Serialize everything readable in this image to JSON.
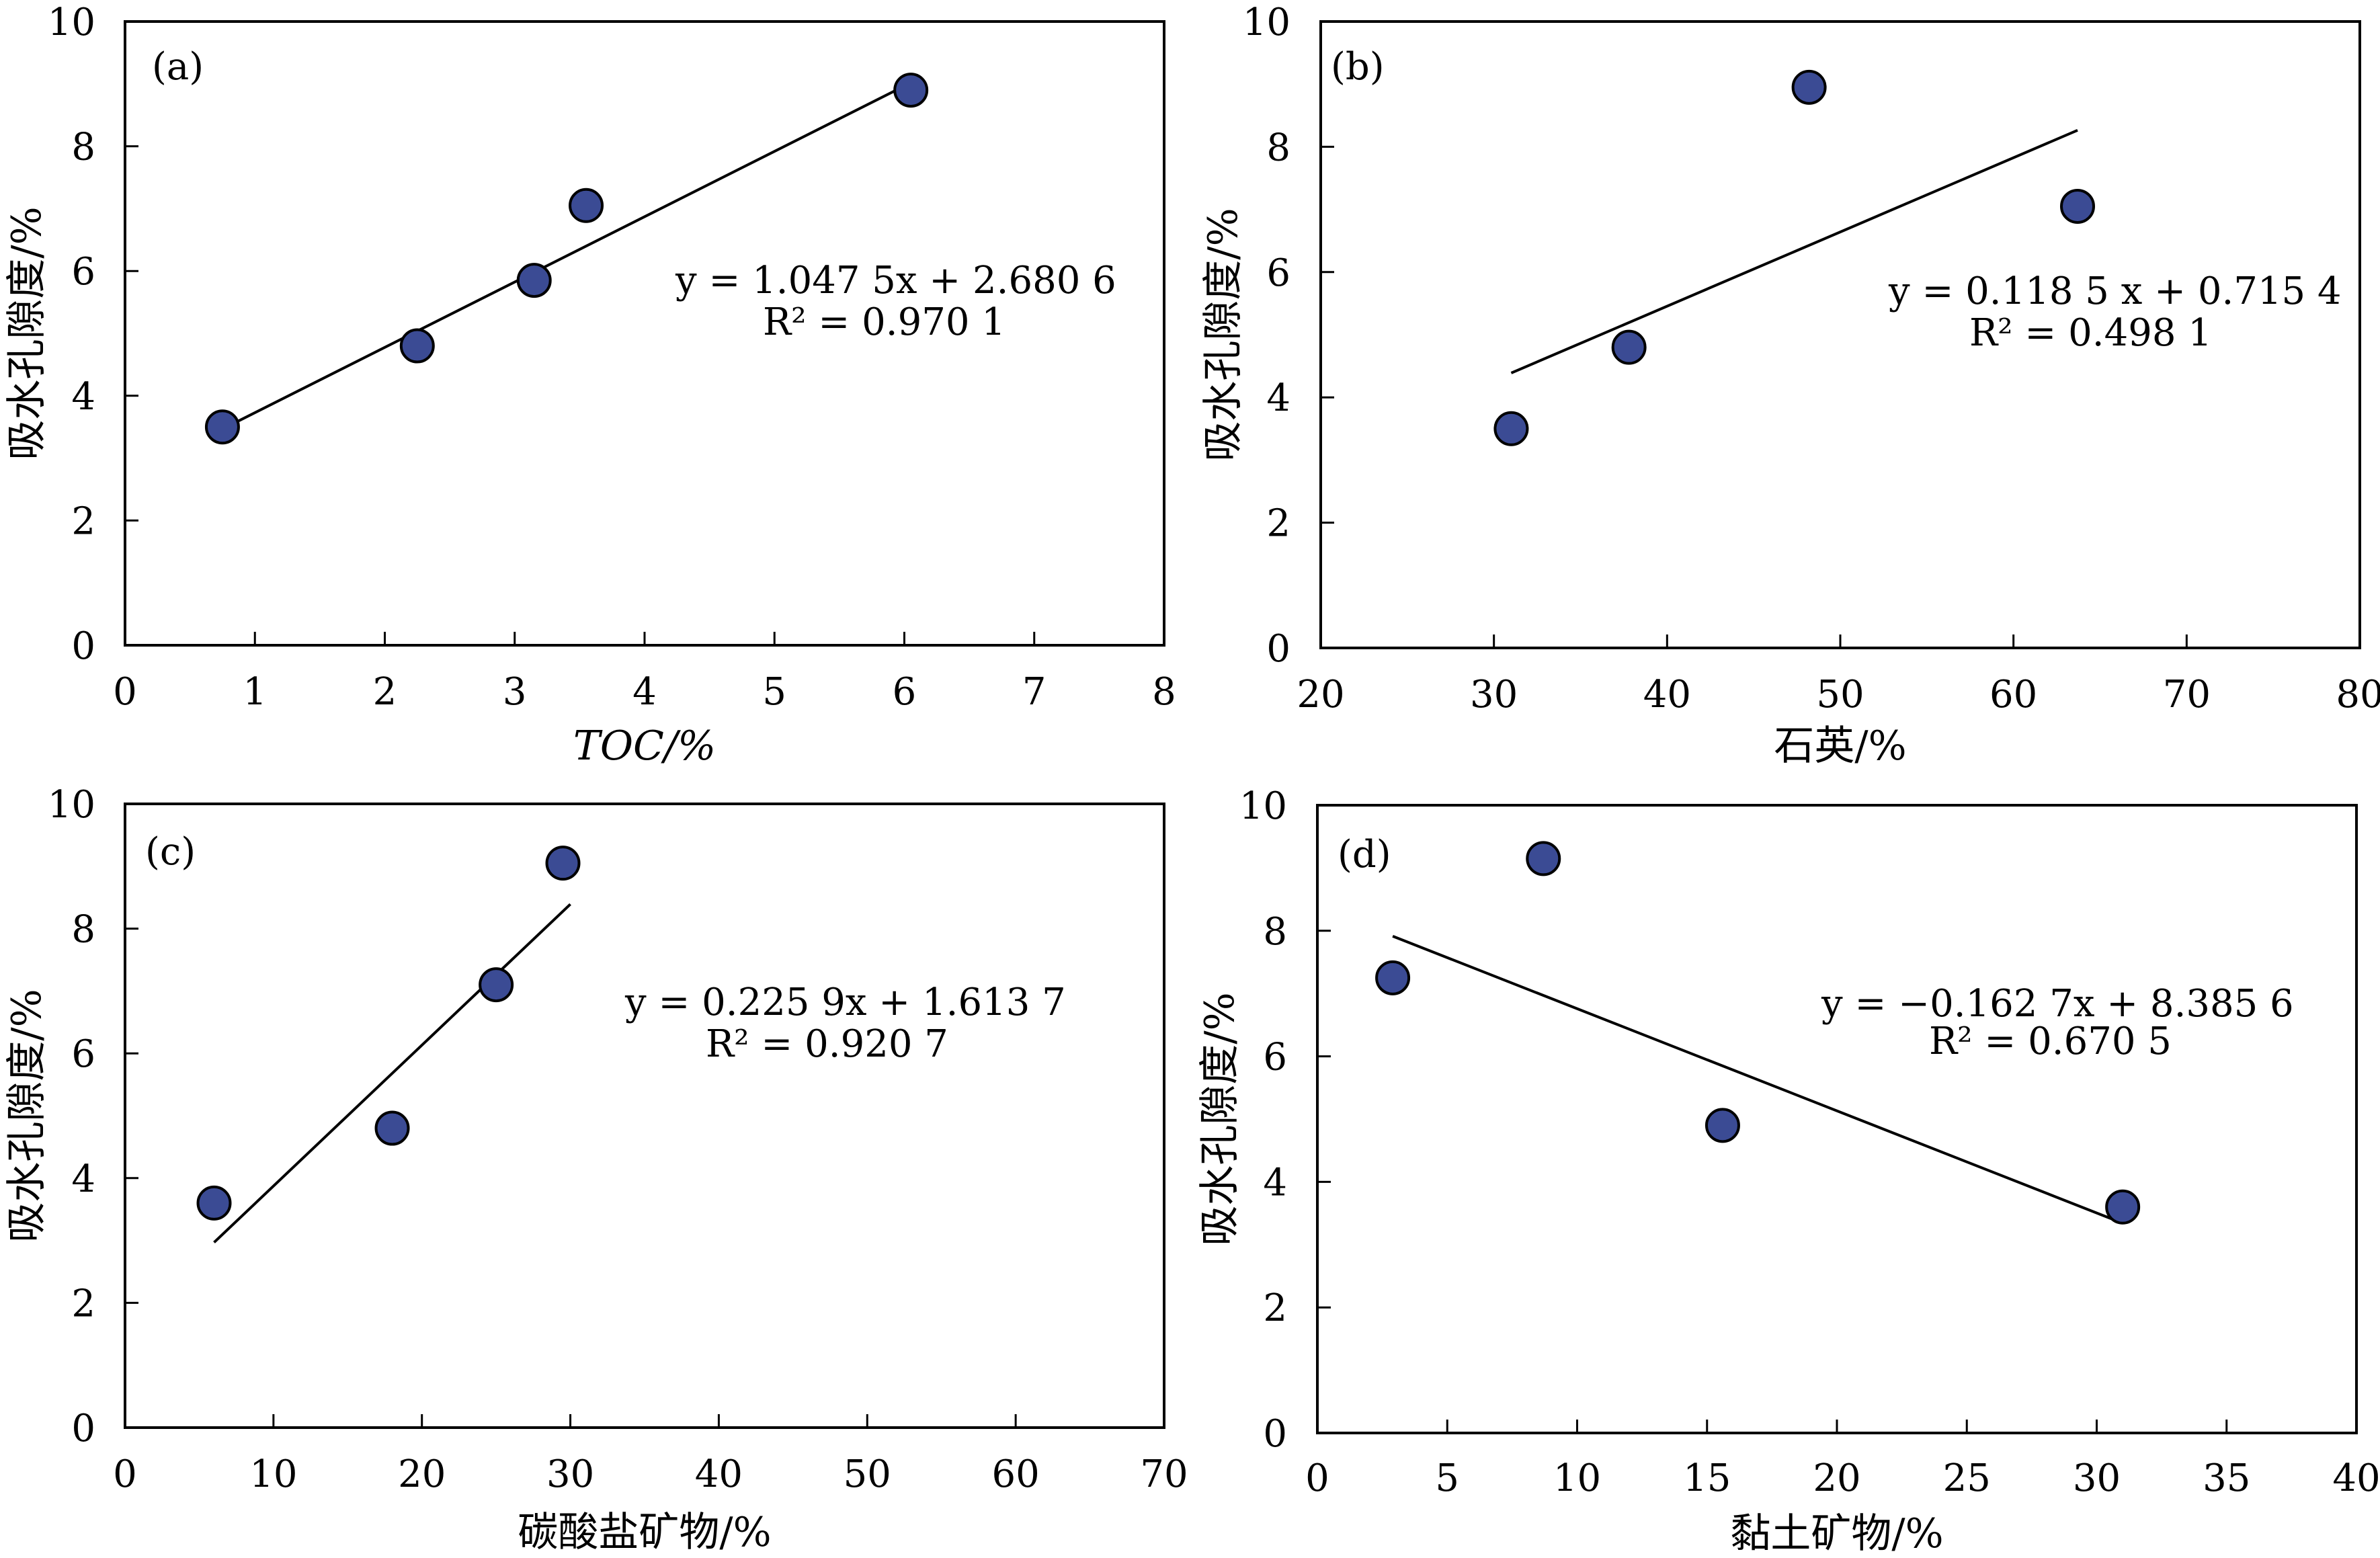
{
  "chart_data": [
    {
      "type": "scatter",
      "panel_label": "(a)",
      "xlabel": "TOC/%",
      "ylabel": "吸水孔隙度/%",
      "xlim": [
        0,
        8
      ],
      "ylim": [
        0,
        10
      ],
      "xticks": [
        0,
        1,
        2,
        3,
        4,
        5,
        6,
        7,
        8
      ],
      "yticks": [
        0,
        2,
        4,
        6,
        8,
        10
      ],
      "points": [
        {
          "x": 0.75,
          "y": 3.5
        },
        {
          "x": 2.25,
          "y": 4.8
        },
        {
          "x": 3.15,
          "y": 5.85
        },
        {
          "x": 3.55,
          "y": 7.05
        },
        {
          "x": 6.05,
          "y": 8.9
        }
      ],
      "fit": {
        "slope": 1.0475,
        "intercept": 2.6806,
        "x_range": [
          0.75,
          6.05
        ]
      },
      "equation": "y = 1.047 5x + 2.680 6",
      "r2": "R² = 0.970 1"
    },
    {
      "type": "scatter",
      "panel_label": "(b)",
      "xlabel": "石英/%",
      "ylabel": "吸水孔隙度/%",
      "xlim": [
        20,
        80
      ],
      "ylim": [
        0,
        10
      ],
      "xticks": [
        20,
        30,
        40,
        50,
        60,
        70,
        80
      ],
      "yticks": [
        0,
        2,
        4,
        6,
        8,
        10
      ],
      "points": [
        {
          "x": 31.0,
          "y": 3.5
        },
        {
          "x": 37.8,
          "y": 4.8
        },
        {
          "x": 48.2,
          "y": 8.95
        },
        {
          "x": 63.7,
          "y": 7.05
        }
      ],
      "fit": {
        "slope": 0.1185,
        "intercept": 0.7154,
        "x_range": [
          31.0,
          63.7
        ]
      },
      "equation": "y = 0.118 5 x + 0.715 4",
      "r2": "R² = 0.498 1"
    },
    {
      "type": "scatter",
      "panel_label": "(c)",
      "xlabel": "碳酸盐矿物/%",
      "ylabel": "吸水孔隙度/%",
      "xlim": [
        0,
        70
      ],
      "ylim": [
        0,
        10
      ],
      "xticks": [
        0,
        10,
        20,
        30,
        40,
        50,
        60,
        70
      ],
      "yticks": [
        0,
        2,
        4,
        6,
        8,
        10
      ],
      "points": [
        {
          "x": 6.0,
          "y": 3.6
        },
        {
          "x": 18.0,
          "y": 4.8
        },
        {
          "x": 25.0,
          "y": 7.1
        },
        {
          "x": 29.5,
          "y": 9.05
        }
      ],
      "fit": {
        "slope": 0.2259,
        "intercept": 1.6137,
        "x_range": [
          6.0,
          30.0
        ]
      },
      "equation": "y = 0.225 9x + 1.613 7",
      "r2": "R² = 0.920 7"
    },
    {
      "type": "scatter",
      "panel_label": "(d)",
      "xlabel": "黏土矿物/%",
      "ylabel": "吸水孔隙度/%",
      "xlim": [
        0,
        40
      ],
      "ylim": [
        0,
        10
      ],
      "xticks": [
        0,
        5,
        10,
        15,
        20,
        25,
        30,
        35,
        40
      ],
      "yticks": [
        0,
        2,
        4,
        6,
        8,
        10
      ],
      "points": [
        {
          "x": 2.9,
          "y": 7.25
        },
        {
          "x": 8.7,
          "y": 9.15
        },
        {
          "x": 15.6,
          "y": 4.9
        },
        {
          "x": 31.0,
          "y": 3.6
        }
      ],
      "fit": {
        "slope": -0.1627,
        "intercept": 8.3856,
        "x_range": [
          2.9,
          31.0
        ]
      },
      "equation": "y = −0.162 7x + 8.385 6",
      "r2": "R² = 0.670 5"
    }
  ]
}
